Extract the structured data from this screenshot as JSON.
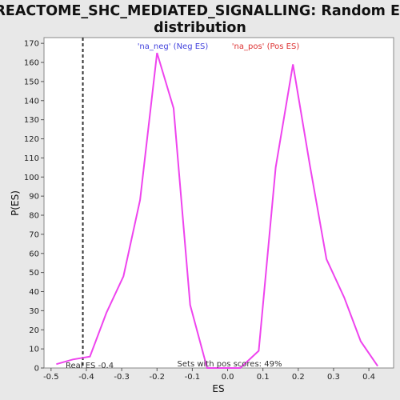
{
  "colors": {
    "background": "#e8e8e8",
    "plot_background": "#ffffff",
    "curve": "#ee44ee",
    "neg_legend": "#4444dd",
    "pos_legend": "#dd3333",
    "real_es_line": "#333333"
  },
  "chart_data": {
    "type": "line",
    "title_line1": "REACTOME_SHC_MEDIATED_SIGNALLING: Random ES",
    "title_line2": "distribution",
    "xlabel": "ES",
    "ylabel": "P(ES)",
    "xlim": [
      -0.52,
      0.47
    ],
    "ylim": [
      0,
      173
    ],
    "x_ticks": [
      -0.5,
      -0.4,
      -0.3,
      -0.2,
      -0.1,
      0.0,
      0.1,
      0.2,
      0.3,
      0.4
    ],
    "x_tick_labels": [
      "-0.5",
      "-0.4",
      "-0.3",
      "-0.2",
      "-0.1",
      "0.0",
      "0.1",
      "0.2",
      "0.3",
      "0.4"
    ],
    "y_ticks": [
      0,
      10,
      20,
      30,
      40,
      50,
      60,
      70,
      80,
      90,
      100,
      110,
      120,
      130,
      140,
      150,
      160,
      170
    ],
    "y_tick_labels": [
      "0",
      "10",
      "20",
      "30",
      "40",
      "50",
      "60",
      "70",
      "80",
      "90",
      "100",
      "110",
      "120",
      "130",
      "140",
      "150",
      "160",
      "170"
    ],
    "grid": false,
    "series": [
      {
        "x": [
          -0.485,
          -0.438,
          -0.39,
          -0.343,
          -0.295,
          -0.248,
          -0.2,
          -0.153,
          -0.106,
          -0.058,
          -0.011,
          0.036,
          0.088,
          0.136,
          0.185,
          0.233,
          0.28,
          0.33,
          0.377,
          0.425
        ],
        "y": [
          2,
          4.5,
          6,
          29,
          48,
          88,
          165,
          136,
          33,
          0,
          0,
          0,
          9,
          105,
          159,
          106,
          57,
          37,
          14,
          1
        ]
      }
    ],
    "legend": {
      "neg_label": "'na_neg' (Neg ES)",
      "pos_label": "'na_pos' (Pos ES)",
      "placement": "top"
    },
    "real_es": {
      "value": -0.41,
      "label": "Real ES -0.4"
    },
    "annotation": "Sets with pos scores: 49%"
  }
}
